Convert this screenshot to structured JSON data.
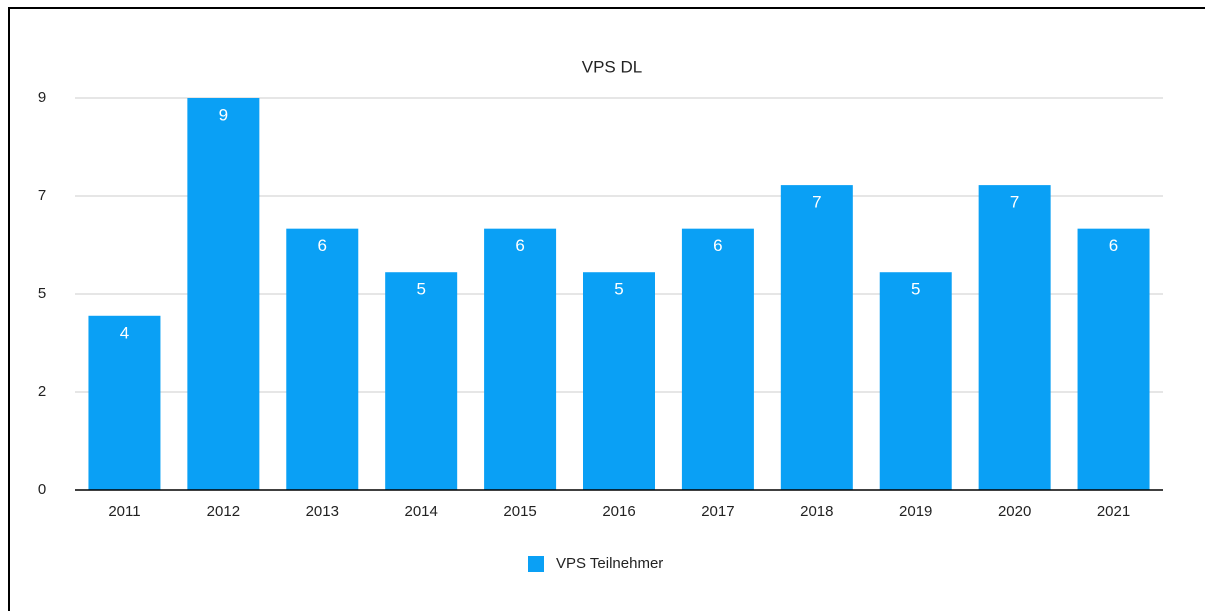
{
  "chart_data": {
    "type": "bar",
    "title": "VPS DL",
    "categories": [
      "2011",
      "2012",
      "2013",
      "2014",
      "2015",
      "2016",
      "2017",
      "2018",
      "2019",
      "2020",
      "2021"
    ],
    "series": [
      {
        "name": "VPS Teilnehmer",
        "color": "#0aa0f5",
        "values": [
          4,
          9,
          6,
          5,
          6,
          5,
          6,
          7,
          5,
          7,
          6
        ]
      }
    ],
    "ylim": [
      0,
      9
    ],
    "yticks": [
      0,
      {
        "value": 2.25,
        "label": "2"
      },
      {
        "value": 4.5,
        "label": "5"
      },
      {
        "value": 6.75,
        "label": "7"
      },
      9
    ],
    "grid": true,
    "legend": "bottom"
  }
}
